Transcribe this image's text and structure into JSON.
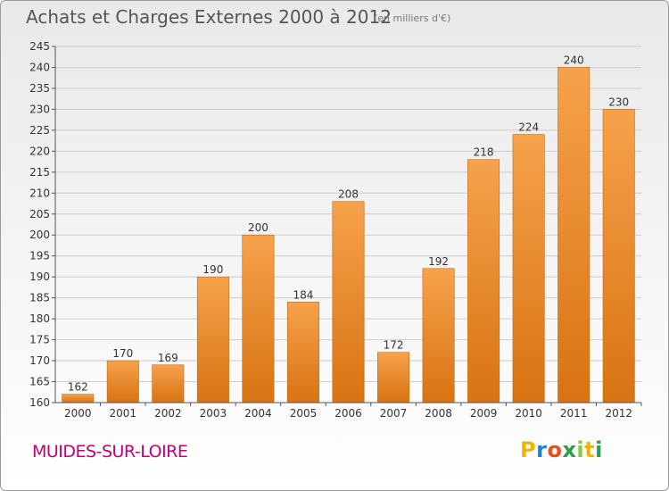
{
  "header": {
    "title": "Achats et Charges Externes 2000 à 2012",
    "subtitle": "(en milliers d'€)"
  },
  "footer": {
    "city": "MUIDES-SUR-LOIRE",
    "logo_text": "Proxiti"
  },
  "colors": {
    "bar_top": "#f6a24c",
    "bar_bottom": "#d87312",
    "axis": "#555555",
    "grid": "#cccccc",
    "city": "#c0007a"
  },
  "chart_data": {
    "type": "bar",
    "categories": [
      "2000",
      "2001",
      "2002",
      "2003",
      "2004",
      "2005",
      "2006",
      "2007",
      "2008",
      "2009",
      "2010",
      "2011",
      "2012"
    ],
    "values": [
      162,
      170,
      169,
      190,
      200,
      184,
      208,
      172,
      192,
      218,
      224,
      240,
      230
    ],
    "ylim": [
      160,
      245
    ],
    "yticks": [
      160,
      165,
      170,
      175,
      180,
      185,
      190,
      195,
      200,
      205,
      210,
      215,
      220,
      225,
      230,
      235,
      240,
      245
    ],
    "grid": true,
    "data_labels": true
  }
}
